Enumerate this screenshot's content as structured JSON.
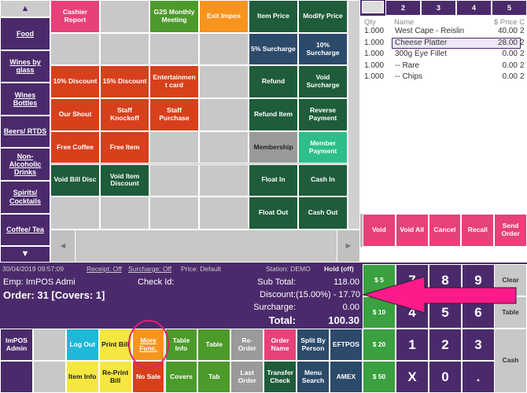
{
  "categories": {
    "up": "▲",
    "items": [
      "Food",
      "Wines by glass",
      "Wines Bottles",
      "Beers/ RTDS",
      "Non-Alcoholic Drinks",
      "Spirits/ Cocktails",
      "Coffee/ Tea"
    ],
    "down": "▼"
  },
  "function_buttons": [
    "Cashier Report",
    "G2S Monthly Meeting",
    "Exit Impos",
    "Item Price",
    "Modify Price",
    "5% Surcharge",
    "10% Surcharge",
    "10% Discount",
    "15% Discount",
    "Entertainment card",
    "Refund",
    "Void Surcharge",
    "Our Shout",
    "Staff Knockoff",
    "Staff Purchase",
    "Refund Item",
    "Reverse Payment",
    "Free Coffee",
    "Free Item",
    "Membership",
    "Member Payment",
    "Void Bill Disc",
    "Void Item Discount",
    "Float In",
    "Cash In",
    "Float Out",
    "Cash Out"
  ],
  "grid_nav": {
    "left": "◄",
    "right": "►"
  },
  "order": {
    "tabs": [
      "2",
      "3",
      "4",
      "5"
    ],
    "columns": [
      "Qty",
      "Name",
      "$ Price C"
    ],
    "rows": [
      [
        "1.000",
        "West Cape - Reislin",
        "40.00",
        "2"
      ],
      [
        "1.000",
        "Cheese Platter",
        "28.00",
        "2"
      ],
      [
        "1.000",
        "300g Eye Fillet",
        "0.00",
        "2"
      ],
      [
        "1.000",
        "-- Rare",
        "0.00",
        "2"
      ],
      [
        "1.000",
        "-- Chips",
        "0.00",
        "2"
      ]
    ]
  },
  "order_actions": [
    "Void",
    "Void All",
    "Cancel",
    "Recall",
    "Send Order"
  ],
  "status": {
    "datetime": "30/04/2019 09:57:09",
    "receipt": "Receipt: Off",
    "surcharge": "Surcharge: Off",
    "price": "Price: Default",
    "station": "Station: DEMO",
    "hold": "Hold (off)"
  },
  "summary": {
    "employee": "Emp: ImPOS Admi",
    "check_id": "Check Id:",
    "order": "Order: 31 [Covers:  1]",
    "sub_total_label": "Sub Total:",
    "sub_total": "118.00",
    "discount_label": "Discount:",
    "discount": "(15.00%) - 17.70",
    "surcharge_label": "Surcharge:",
    "surcharge": "0.00",
    "total_label": "Total:",
    "total": "100.30"
  },
  "bottom_buttons": [
    "ImPOS Admin",
    "Log Out",
    "Print Bill",
    "More Func.",
    "Table Info",
    "Table",
    "Re-Order",
    "Order Name",
    "Split By Person",
    "EFTPOS",
    "Item Info",
    "Re-Print Bill",
    "No Sale",
    "Covers",
    "Tab",
    "Last Order",
    "Transfer Check",
    "Menu Search",
    "AMEX"
  ],
  "keypad": {
    "cash": [
      "$ 5",
      "$ 10",
      "$ 20",
      "$ 50"
    ],
    "keys": [
      "7",
      "8",
      "9",
      "4",
      "5",
      "6",
      "1",
      "2",
      "3",
      "X",
      "0",
      "."
    ],
    "side": [
      "Clear",
      "Table",
      "Cash"
    ]
  }
}
